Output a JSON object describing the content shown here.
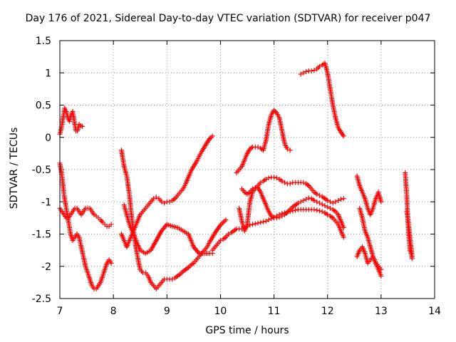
{
  "chart_data": {
    "type": "scatter",
    "title": "Day 176 of 2021, Sidereal Day-to-day VTEC variation (SDTVAR) for receiver p047",
    "xlabel": "GPS time / hours",
    "ylabel": "SDTVAR / TECUs",
    "xlim": [
      7,
      14
    ],
    "ylim": [
      -2.5,
      1.5
    ],
    "xticks": [
      "7",
      "8",
      "9",
      "10",
      "11",
      "12",
      "13",
      "14"
    ],
    "yticks": [
      "1.5",
      "1",
      "0.5",
      "0",
      "-0.5",
      "-1",
      "-1.5",
      "-2",
      "-2.5"
    ],
    "grid": true,
    "marker": "+",
    "color": "#ff0000",
    "series": [
      {
        "name": "s1",
        "x": [
          7.0,
          7.03,
          7.06,
          7.09,
          7.12,
          7.15,
          7.18,
          7.21,
          7.24,
          7.27,
          7.3,
          7.33,
          7.36,
          7.39,
          7.42
        ],
        "y": [
          0.05,
          0.15,
          0.3,
          0.45,
          0.4,
          0.3,
          0.25,
          0.35,
          0.4,
          0.25,
          0.1,
          0.1,
          0.2,
          0.18,
          0.17
        ]
      },
      {
        "name": "s2",
        "x": [
          7.0,
          7.04,
          7.08,
          7.12,
          7.16,
          7.2,
          7.24,
          7.28,
          7.32,
          7.36,
          7.4,
          7.44,
          7.48,
          7.52,
          7.56,
          7.6,
          7.64,
          7.68,
          7.72,
          7.76,
          7.8,
          7.84,
          7.88,
          7.92,
          7.96
        ],
        "y": [
          -0.4,
          -0.6,
          -0.9,
          -1.1,
          -1.3,
          -1.5,
          -1.6,
          -1.55,
          -1.5,
          -1.55,
          -1.7,
          -1.85,
          -2.0,
          -2.1,
          -2.2,
          -2.3,
          -2.35,
          -2.35,
          -2.3,
          -2.25,
          -2.15,
          -2.05,
          -1.95,
          -1.9,
          -1.95
        ]
      },
      {
        "name": "s3",
        "x": [
          7.0,
          7.04,
          7.08,
          7.12,
          7.16,
          7.2,
          7.24,
          7.28,
          7.32,
          7.36,
          7.4,
          7.44,
          7.48,
          7.52,
          7.56,
          7.6,
          7.64,
          7.68,
          7.72,
          7.76,
          7.8,
          7.84,
          7.88,
          7.92,
          7.96
        ],
        "y": [
          -1.1,
          -1.15,
          -1.2,
          -1.25,
          -1.25,
          -1.2,
          -1.15,
          -1.1,
          -1.1,
          -1.15,
          -1.2,
          -1.15,
          -1.1,
          -1.1,
          -1.1,
          -1.15,
          -1.2,
          -1.22,
          -1.25,
          -1.28,
          -1.32,
          -1.35,
          -1.38,
          -1.38,
          -1.35
        ]
      },
      {
        "name": "s4",
        "x": [
          8.15,
          8.2,
          8.25,
          8.3,
          8.35,
          8.4,
          8.45,
          8.5,
          8.55,
          8.6,
          8.65,
          8.7,
          8.75,
          8.8,
          8.85,
          8.9,
          8.95,
          9.0,
          9.05,
          9.1,
          9.15,
          9.2,
          9.25,
          9.3,
          9.35,
          9.4,
          9.45,
          9.5,
          9.55,
          9.6,
          9.65,
          9.7,
          9.75,
          9.8,
          9.85
        ],
        "y": [
          -1.5,
          -1.6,
          -1.7,
          -1.6,
          -1.5,
          -1.4,
          -1.3,
          -1.2,
          -1.15,
          -1.1,
          -1.05,
          -1.0,
          -0.95,
          -0.93,
          -0.95,
          -1.0,
          -1.02,
          -1.0,
          -1.0,
          -0.98,
          -0.95,
          -0.9,
          -0.85,
          -0.8,
          -0.72,
          -0.62,
          -0.52,
          -0.45,
          -0.38,
          -0.3,
          -0.22,
          -0.15,
          -0.08,
          -0.02,
          0.02
        ]
      },
      {
        "name": "s5",
        "x": [
          8.15,
          8.2,
          8.25,
          8.3,
          8.35,
          8.4,
          8.45,
          8.5,
          8.55,
          8.6,
          8.65,
          8.7,
          8.75,
          8.8,
          8.85,
          8.9,
          8.95,
          9.0,
          9.05,
          9.1,
          9.15,
          9.2,
          9.25,
          9.3,
          9.35,
          9.4,
          9.45,
          9.5,
          9.55,
          9.6,
          9.65,
          9.7,
          9.75,
          9.8,
          9.85,
          9.9,
          9.95,
          10.0,
          10.05,
          10.1
        ],
        "y": [
          -0.2,
          -0.45,
          -0.6,
          -0.9,
          -1.3,
          -1.6,
          -1.85,
          -2.05,
          -2.1,
          -2.1,
          -2.15,
          -2.25,
          -2.3,
          -2.35,
          -2.3,
          -2.25,
          -2.2,
          -2.2,
          -2.2,
          -2.2,
          -2.18,
          -2.15,
          -2.12,
          -2.08,
          -2.05,
          -2.02,
          -1.98,
          -1.95,
          -1.9,
          -1.85,
          -1.8,
          -1.75,
          -1.7,
          -1.62,
          -1.55,
          -1.48,
          -1.42,
          -1.36,
          -1.32,
          -1.28
        ]
      },
      {
        "name": "s6",
        "x": [
          8.2,
          8.3,
          8.4,
          8.5,
          8.6,
          8.7,
          8.8,
          8.9,
          9.0,
          9.1,
          9.2,
          9.3,
          9.4,
          9.5,
          9.6,
          9.7,
          9.8,
          9.85
        ],
        "y": [
          -1.05,
          -1.35,
          -1.55,
          -1.75,
          -1.8,
          -1.75,
          -1.6,
          -1.45,
          -1.35,
          -1.38,
          -1.4,
          -1.45,
          -1.5,
          -1.7,
          -1.8,
          -1.8,
          -1.8,
          -1.8
        ]
      },
      {
        "name": "s7",
        "x": [
          9.85,
          9.9,
          9.95,
          10.0,
          10.05,
          10.1,
          10.15,
          10.2,
          10.25,
          10.3,
          10.35,
          10.4,
          10.45,
          10.5,
          10.55,
          10.6,
          10.65,
          10.7,
          10.75,
          10.8,
          10.85,
          10.9,
          10.95,
          11.0,
          11.05,
          11.1,
          11.15,
          11.2,
          11.25,
          11.3,
          11.35,
          11.4,
          11.45,
          11.5,
          11.55,
          11.6,
          11.65,
          11.7,
          11.75,
          11.8,
          11.85,
          11.9,
          11.95,
          12.0,
          12.05,
          12.1,
          12.15,
          12.2,
          12.25,
          12.3
        ],
        "y": [
          -1.75,
          -1.7,
          -1.65,
          -1.6,
          -1.58,
          -1.55,
          -1.5,
          -1.48,
          -1.45,
          -1.42,
          -1.42,
          -1.42,
          -1.4,
          -1.38,
          -1.36,
          -1.35,
          -1.34,
          -1.33,
          -1.32,
          -1.31,
          -1.3,
          -1.28,
          -1.26,
          -1.24,
          -1.22,
          -1.2,
          -1.18,
          -1.17,
          -1.16,
          -1.15,
          -1.14,
          -1.13,
          -1.12,
          -1.12,
          -1.12,
          -1.12,
          -1.12,
          -1.12,
          -1.12,
          -1.13,
          -1.14,
          -1.15,
          -1.17,
          -1.2,
          -1.22,
          -1.25,
          -1.3,
          -1.35,
          -1.45,
          -1.55
        ]
      },
      {
        "name": "s8",
        "x": [
          10.3,
          10.35,
          10.4,
          10.45,
          10.5,
          10.55,
          10.6,
          10.65,
          10.7,
          10.75,
          10.8,
          10.85,
          10.9,
          10.95,
          11.0,
          11.05,
          11.1,
          11.15,
          11.2,
          11.25,
          11.3
        ],
        "y": [
          -0.55,
          -0.5,
          -0.45,
          -0.35,
          -0.25,
          -0.18,
          -0.15,
          -0.15,
          -0.15,
          -0.17,
          -0.2,
          -0.05,
          0.2,
          0.35,
          0.42,
          0.38,
          0.3,
          0.1,
          -0.1,
          -0.18,
          -0.2
        ]
      },
      {
        "name": "s9",
        "x": [
          10.35,
          10.4,
          10.45,
          10.5,
          10.55,
          10.6,
          10.65,
          10.7,
          10.75,
          10.8,
          10.85,
          10.9,
          10.95,
          11.0,
          11.05,
          11.1,
          11.15,
          11.2,
          11.25,
          11.3,
          11.35,
          11.4,
          11.45,
          11.5,
          11.55,
          11.6,
          11.65,
          11.7,
          11.75,
          11.8,
          11.85,
          11.9,
          11.95,
          12.0,
          12.05,
          12.1,
          12.15,
          12.2,
          12.25,
          12.3
        ],
        "y": [
          -1.1,
          -1.3,
          -1.45,
          -1.35,
          -1.0,
          -0.85,
          -0.8,
          -0.75,
          -0.7,
          -0.68,
          -0.65,
          -0.63,
          -0.62,
          -0.62,
          -0.63,
          -0.65,
          -0.68,
          -0.7,
          -0.72,
          -0.72,
          -0.7,
          -0.7,
          -0.7,
          -0.7,
          -0.7,
          -0.72,
          -0.75,
          -0.8,
          -0.85,
          -0.88,
          -0.9,
          -0.92,
          -0.95,
          -0.98,
          -1.0,
          -1.02,
          -1.0,
          -0.98,
          -0.96,
          -0.95
        ]
      },
      {
        "name": "s10",
        "x": [
          10.4,
          10.45,
          10.5,
          10.55,
          10.6,
          10.65,
          10.7,
          10.75,
          10.8,
          10.85,
          10.9,
          10.95,
          11.0,
          11.05,
          11.1,
          11.15,
          11.2,
          11.25,
          11.3,
          11.35,
          11.4,
          11.45,
          11.5,
          11.55,
          11.6,
          11.65,
          11.7,
          11.75,
          11.8,
          11.85,
          11.9,
          11.95,
          12.0,
          12.05,
          12.1,
          12.15,
          12.2,
          12.25,
          12.3
        ],
        "y": [
          -0.8,
          -0.85,
          -0.88,
          -0.85,
          -0.8,
          -0.78,
          -0.78,
          -0.85,
          -0.95,
          -1.05,
          -1.15,
          -1.22,
          -1.25,
          -1.25,
          -1.24,
          -1.22,
          -1.2,
          -1.16,
          -1.12,
          -1.08,
          -1.05,
          -1.02,
          -1.0,
          -0.98,
          -0.96,
          -0.94,
          -0.95,
          -0.98,
          -1.0,
          -1.02,
          -1.04,
          -1.06,
          -1.08,
          -1.1,
          -1.12,
          -1.15,
          -1.2,
          -1.3,
          -1.4
        ]
      },
      {
        "name": "s11",
        "x": [
          11.5,
          11.55,
          11.6,
          11.65,
          11.7,
          11.75,
          11.8,
          11.85,
          11.9,
          11.95,
          12.0,
          12.05,
          12.1,
          12.15,
          12.2,
          12.25,
          12.3
        ],
        "y": [
          0.98,
          1.0,
          1.02,
          1.03,
          1.03,
          1.04,
          1.06,
          1.1,
          1.12,
          1.15,
          1.0,
          0.75,
          0.5,
          0.3,
          0.15,
          0.08,
          0.02
        ]
      },
      {
        "name": "s12",
        "x": [
          12.55,
          12.6,
          12.65,
          12.7,
          12.75,
          12.8,
          12.85,
          12.9,
          12.95,
          13.0
        ],
        "y": [
          -0.6,
          -0.75,
          -0.85,
          -0.95,
          -1.1,
          -1.2,
          -1.1,
          -0.95,
          -0.85,
          -1.0
        ]
      },
      {
        "name": "s13",
        "x": [
          12.55,
          12.6,
          12.65,
          12.7,
          12.75,
          12.8,
          12.85,
          12.9,
          12.95,
          13.0
        ],
        "y": [
          -1.85,
          -1.75,
          -1.7,
          -1.8,
          -1.95,
          -1.9,
          -1.85,
          -1.95,
          -2.05,
          -2.15
        ]
      },
      {
        "name": "s14",
        "x": [
          12.6,
          12.65,
          12.7,
          12.75,
          12.8,
          12.85,
          12.9,
          12.95,
          13.0
        ],
        "y": [
          -1.1,
          -1.25,
          -1.45,
          -1.55,
          -1.7,
          -1.85,
          -1.95,
          -2.0,
          -2.05
        ]
      },
      {
        "name": "s15",
        "x": [
          13.45,
          13.48,
          13.5,
          13.52,
          13.54,
          13.56,
          13.58
        ],
        "y": [
          -0.55,
          -0.9,
          -1.3,
          -1.55,
          -1.75,
          -1.8,
          -1.88
        ]
      },
      {
        "name": "s16",
        "x": [
          13.48,
          13.5,
          13.52,
          13.54,
          13.56,
          13.58
        ],
        "y": [
          -1.15,
          -1.25,
          -1.4,
          -1.55,
          -1.7,
          -1.85
        ]
      }
    ]
  }
}
